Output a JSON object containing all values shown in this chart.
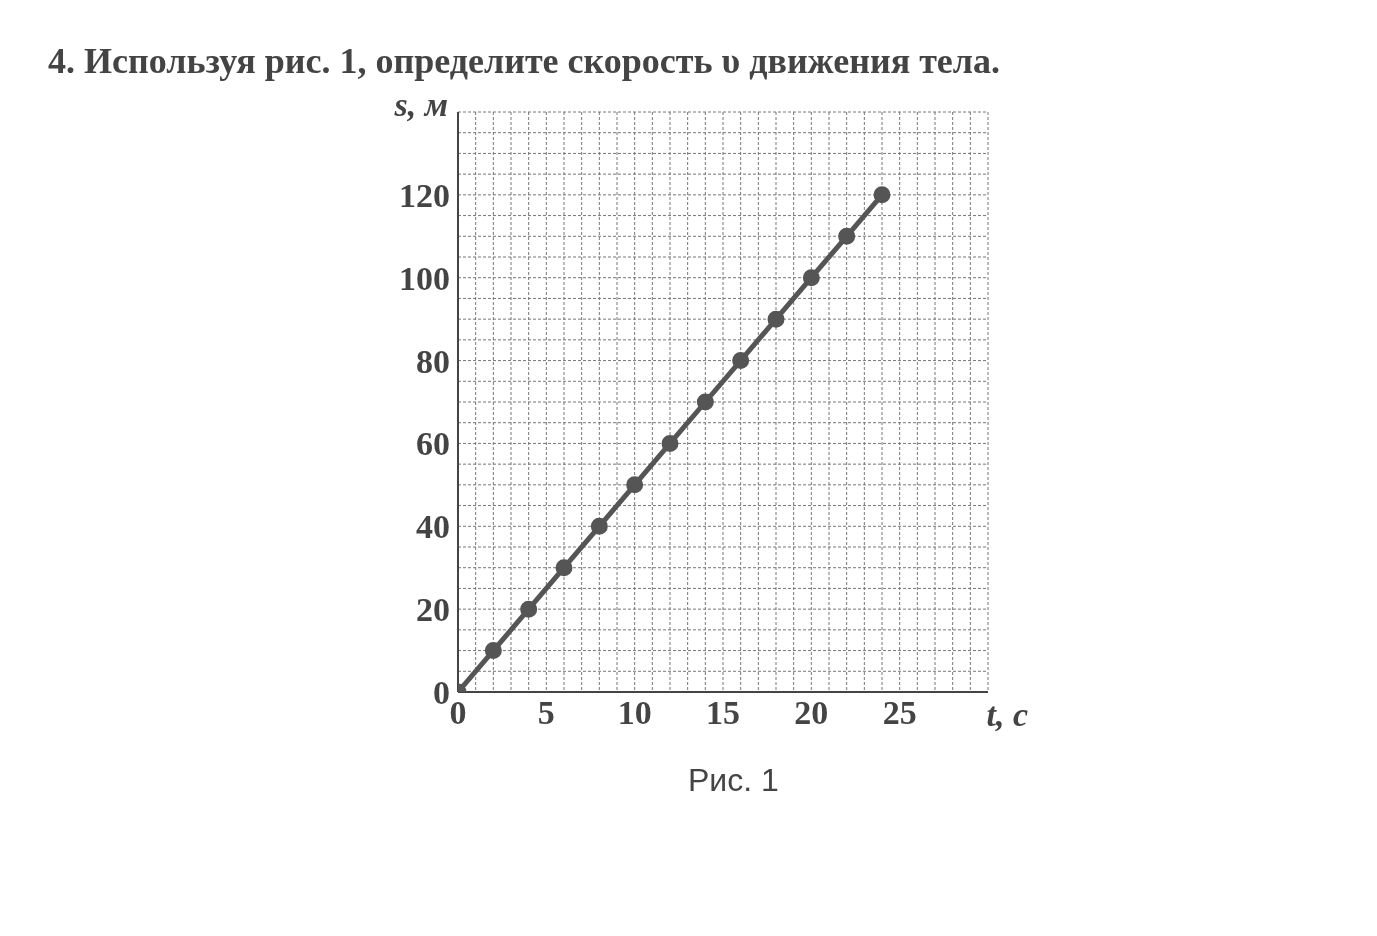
{
  "chart_data": {
    "type": "line",
    "title": "4. Используя рис. 1, определите скорость υ движения тела.",
    "xlabel": "t, с",
    "ylabel": "s, м",
    "annotations": [
      "Рис. 1"
    ],
    "x": [
      0,
      2,
      4,
      6,
      8,
      10,
      12,
      14,
      16,
      18,
      20,
      22,
      24
    ],
    "series": [
      {
        "color": "#555555",
        "values": [
          0,
          10,
          20,
          30,
          40,
          50,
          60,
          70,
          80,
          90,
          100,
          110,
          120
        ]
      }
    ],
    "xlim": [
      0,
      30
    ],
    "ylim": [
      0,
      140
    ],
    "xticks": [
      0,
      {
        "value": 1,
        "label": null
      },
      {
        "value": 2,
        "label": null
      },
      {
        "value": 3,
        "label": null
      },
      {
        "value": 4,
        "label": null
      },
      5,
      {
        "value": 6,
        "label": null
      },
      {
        "value": 7,
        "label": null
      },
      {
        "value": 8,
        "label": null
      },
      {
        "value": 9,
        "label": null
      },
      10,
      {
        "value": 11,
        "label": null
      },
      {
        "value": 12,
        "label": null
      },
      {
        "value": 13,
        "label": null
      },
      {
        "value": 14,
        "label": null
      },
      15,
      {
        "value": 16,
        "label": null
      },
      {
        "value": 17,
        "label": null
      },
      {
        "value": 18,
        "label": null
      },
      {
        "value": 19,
        "label": null
      },
      20,
      {
        "value": 21,
        "label": null
      },
      {
        "value": 22,
        "label": null
      },
      {
        "value": 23,
        "label": null
      },
      {
        "value": 24,
        "label": null
      },
      25,
      {
        "value": 26,
        "label": null
      },
      {
        "value": 27,
        "label": null
      },
      {
        "value": 28,
        "label": null
      },
      {
        "value": 29,
        "label": null
      },
      {
        "value": 30,
        "label": null
      }
    ],
    "yticks": [
      0,
      {
        "value": 5,
        "label": null
      },
      {
        "value": 10,
        "label": null
      },
      {
        "value": 15,
        "label": null
      },
      20,
      {
        "value": 25,
        "label": null
      },
      {
        "value": 30,
        "label": null
      },
      {
        "value": 35,
        "label": null
      },
      40,
      {
        "value": 45,
        "label": null
      },
      {
        "value": 50,
        "label": null
      },
      {
        "value": 55,
        "label": null
      },
      60,
      {
        "value": 65,
        "label": null
      },
      {
        "value": 70,
        "label": null
      },
      {
        "value": 75,
        "label": null
      },
      80,
      {
        "value": 85,
        "label": null
      },
      {
        "value": 90,
        "label": null
      },
      {
        "value": 95,
        "label": null
      },
      100,
      {
        "value": 105,
        "label": null
      },
      {
        "value": 110,
        "label": null
      },
      {
        "value": 115,
        "label": null
      },
      120,
      {
        "value": 125,
        "label": null
      },
      {
        "value": 130,
        "label": null
      },
      {
        "value": 135,
        "label": null
      },
      {
        "value": 140,
        "label": null
      }
    ],
    "grid": true,
    "marker": "circle",
    "line_style": "solid"
  }
}
